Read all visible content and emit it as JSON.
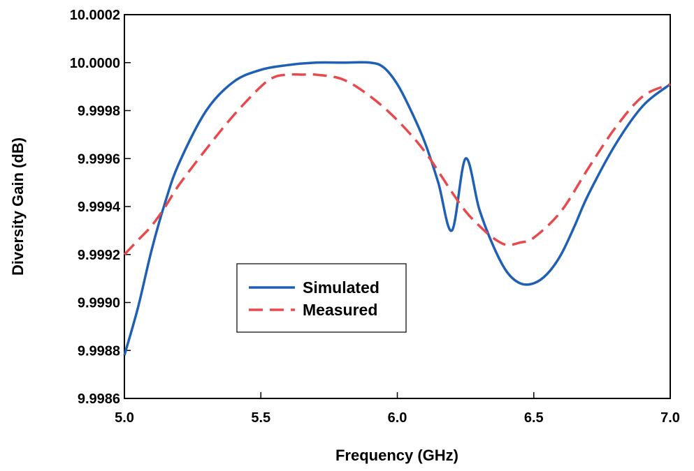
{
  "chart_data": {
    "type": "line",
    "title": "",
    "xlabel": "Frequency (GHz)",
    "ylabel": "Diversity Gain (dB)",
    "xlim": [
      5.0,
      7.0
    ],
    "ylim": [
      9.9986,
      10.0002
    ],
    "x_ticks": [
      5.0,
      5.5,
      6.0,
      6.5,
      7.0
    ],
    "x_tick_labels": [
      "5.0",
      "5.5",
      "6.0",
      "6.5",
      "7.0"
    ],
    "y_ticks": [
      9.9986,
      9.9988,
      9.999,
      9.9992,
      9.9994,
      9.9996,
      9.9998,
      10.0,
      10.0002
    ],
    "y_tick_labels": [
      "9.9986",
      "9.9988",
      "9.9990",
      "9.9992",
      "9.9994",
      "9.9996",
      "9.9998",
      "10.0000",
      "10.0002"
    ],
    "grid": false,
    "legend_position": "center-left",
    "series": [
      {
        "name": "Simulated",
        "color": "#1f5fb4",
        "style": "solid",
        "x": [
          5.0,
          5.05,
          5.1,
          5.15,
          5.2,
          5.3,
          5.4,
          5.5,
          5.6,
          5.7,
          5.8,
          5.9,
          5.95,
          6.0,
          6.05,
          6.1,
          6.15,
          6.2,
          6.25,
          6.3,
          6.35,
          6.4,
          6.45,
          6.5,
          6.55,
          6.6,
          6.65,
          6.7,
          6.8,
          6.9,
          7.0
        ],
        "y": [
          9.99878,
          9.99898,
          9.99922,
          9.99942,
          9.99958,
          9.9998,
          9.99992,
          9.99997,
          9.99999,
          10.0,
          10.0,
          10.0,
          9.99998,
          9.99991,
          9.9998,
          9.99967,
          9.9995,
          9.9993,
          9.9996,
          9.99939,
          9.99924,
          9.99913,
          9.99908,
          9.99908,
          9.99912,
          9.9992,
          9.99932,
          9.99945,
          9.99966,
          9.99982,
          9.99991
        ]
      },
      {
        "name": "Measured",
        "color": "#e8494c",
        "style": "dashed",
        "x": [
          5.0,
          5.05,
          5.1,
          5.15,
          5.2,
          5.3,
          5.4,
          5.5,
          5.55,
          5.6,
          5.65,
          5.7,
          5.8,
          5.9,
          6.0,
          6.1,
          6.2,
          6.25,
          6.3,
          6.35,
          6.4,
          6.45,
          6.5,
          6.6,
          6.7,
          6.8,
          6.9,
          7.0
        ],
        "y": [
          9.9992,
          9.99926,
          9.99932,
          9.9994,
          9.99949,
          9.99964,
          9.99978,
          9.9999,
          9.99994,
          9.99995,
          9.99995,
          9.99995,
          9.99993,
          9.99986,
          9.99976,
          9.99963,
          9.99946,
          9.99938,
          9.99932,
          9.99927,
          9.99924,
          9.99925,
          9.99927,
          9.99938,
          9.99956,
          9.99973,
          9.99986,
          9.99991
        ]
      }
    ]
  }
}
